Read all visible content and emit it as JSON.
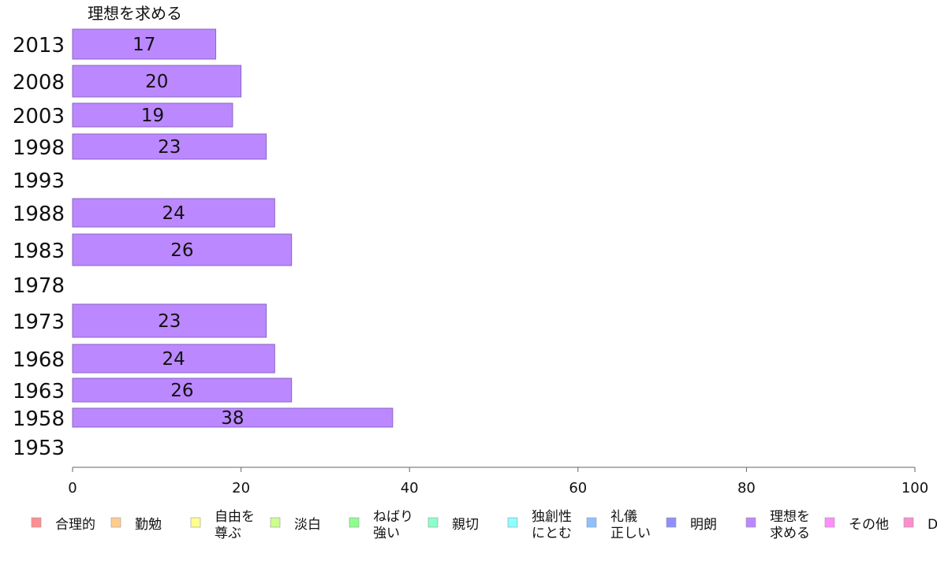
{
  "chart_data": {
    "type": "bar",
    "orientation": "horizontal",
    "series_title": "理想を求める",
    "series_color": "#bb88ff",
    "categories": [
      "2013",
      "2008",
      "2003",
      "1998",
      "1993",
      "1988",
      "1983",
      "1978",
      "1973",
      "1968",
      "1963",
      "1958",
      "1953"
    ],
    "values": [
      17,
      20,
      19,
      23,
      null,
      24,
      26,
      null,
      23,
      24,
      26,
      38,
      null
    ],
    "data_labels": [
      "17",
      "20",
      "19",
      "23",
      "",
      "24",
      "26",
      "",
      "23",
      "24",
      "26",
      "38",
      ""
    ],
    "xlim": [
      0,
      100
    ],
    "xticks": [
      "0",
      "20",
      "40",
      "60",
      "80",
      "100"
    ],
    "grid": false,
    "legend_position": "bottom",
    "legend": [
      {
        "lines": [
          "合理的"
        ],
        "color": "#ff8f8f"
      },
      {
        "lines": [
          "勤勉"
        ],
        "color": "#ffcc8f"
      },
      {
        "lines": [
          "自由を",
          "尊ぶ"
        ],
        "color": "#ffff8f"
      },
      {
        "lines": [
          "淡白"
        ],
        "color": "#ccff8f"
      },
      {
        "lines": [
          "ねばり",
          "強い"
        ],
        "color": "#8fff8f"
      },
      {
        "lines": [
          "親切"
        ],
        "color": "#8fffcc"
      },
      {
        "lines": [
          "独創性",
          "にとむ"
        ],
        "color": "#8fffff"
      },
      {
        "lines": [
          "礼儀",
          "正しい"
        ],
        "color": "#8fbfff"
      },
      {
        "lines": [
          "明朗"
        ],
        "color": "#8f8fff"
      },
      {
        "lines": [
          "理想を",
          "求める"
        ],
        "color": "#bb88ff"
      },
      {
        "lines": [
          "その他"
        ],
        "color": "#ff8fff"
      },
      {
        "lines": [
          "D"
        ],
        "color": "#ff8fcc"
      }
    ]
  }
}
